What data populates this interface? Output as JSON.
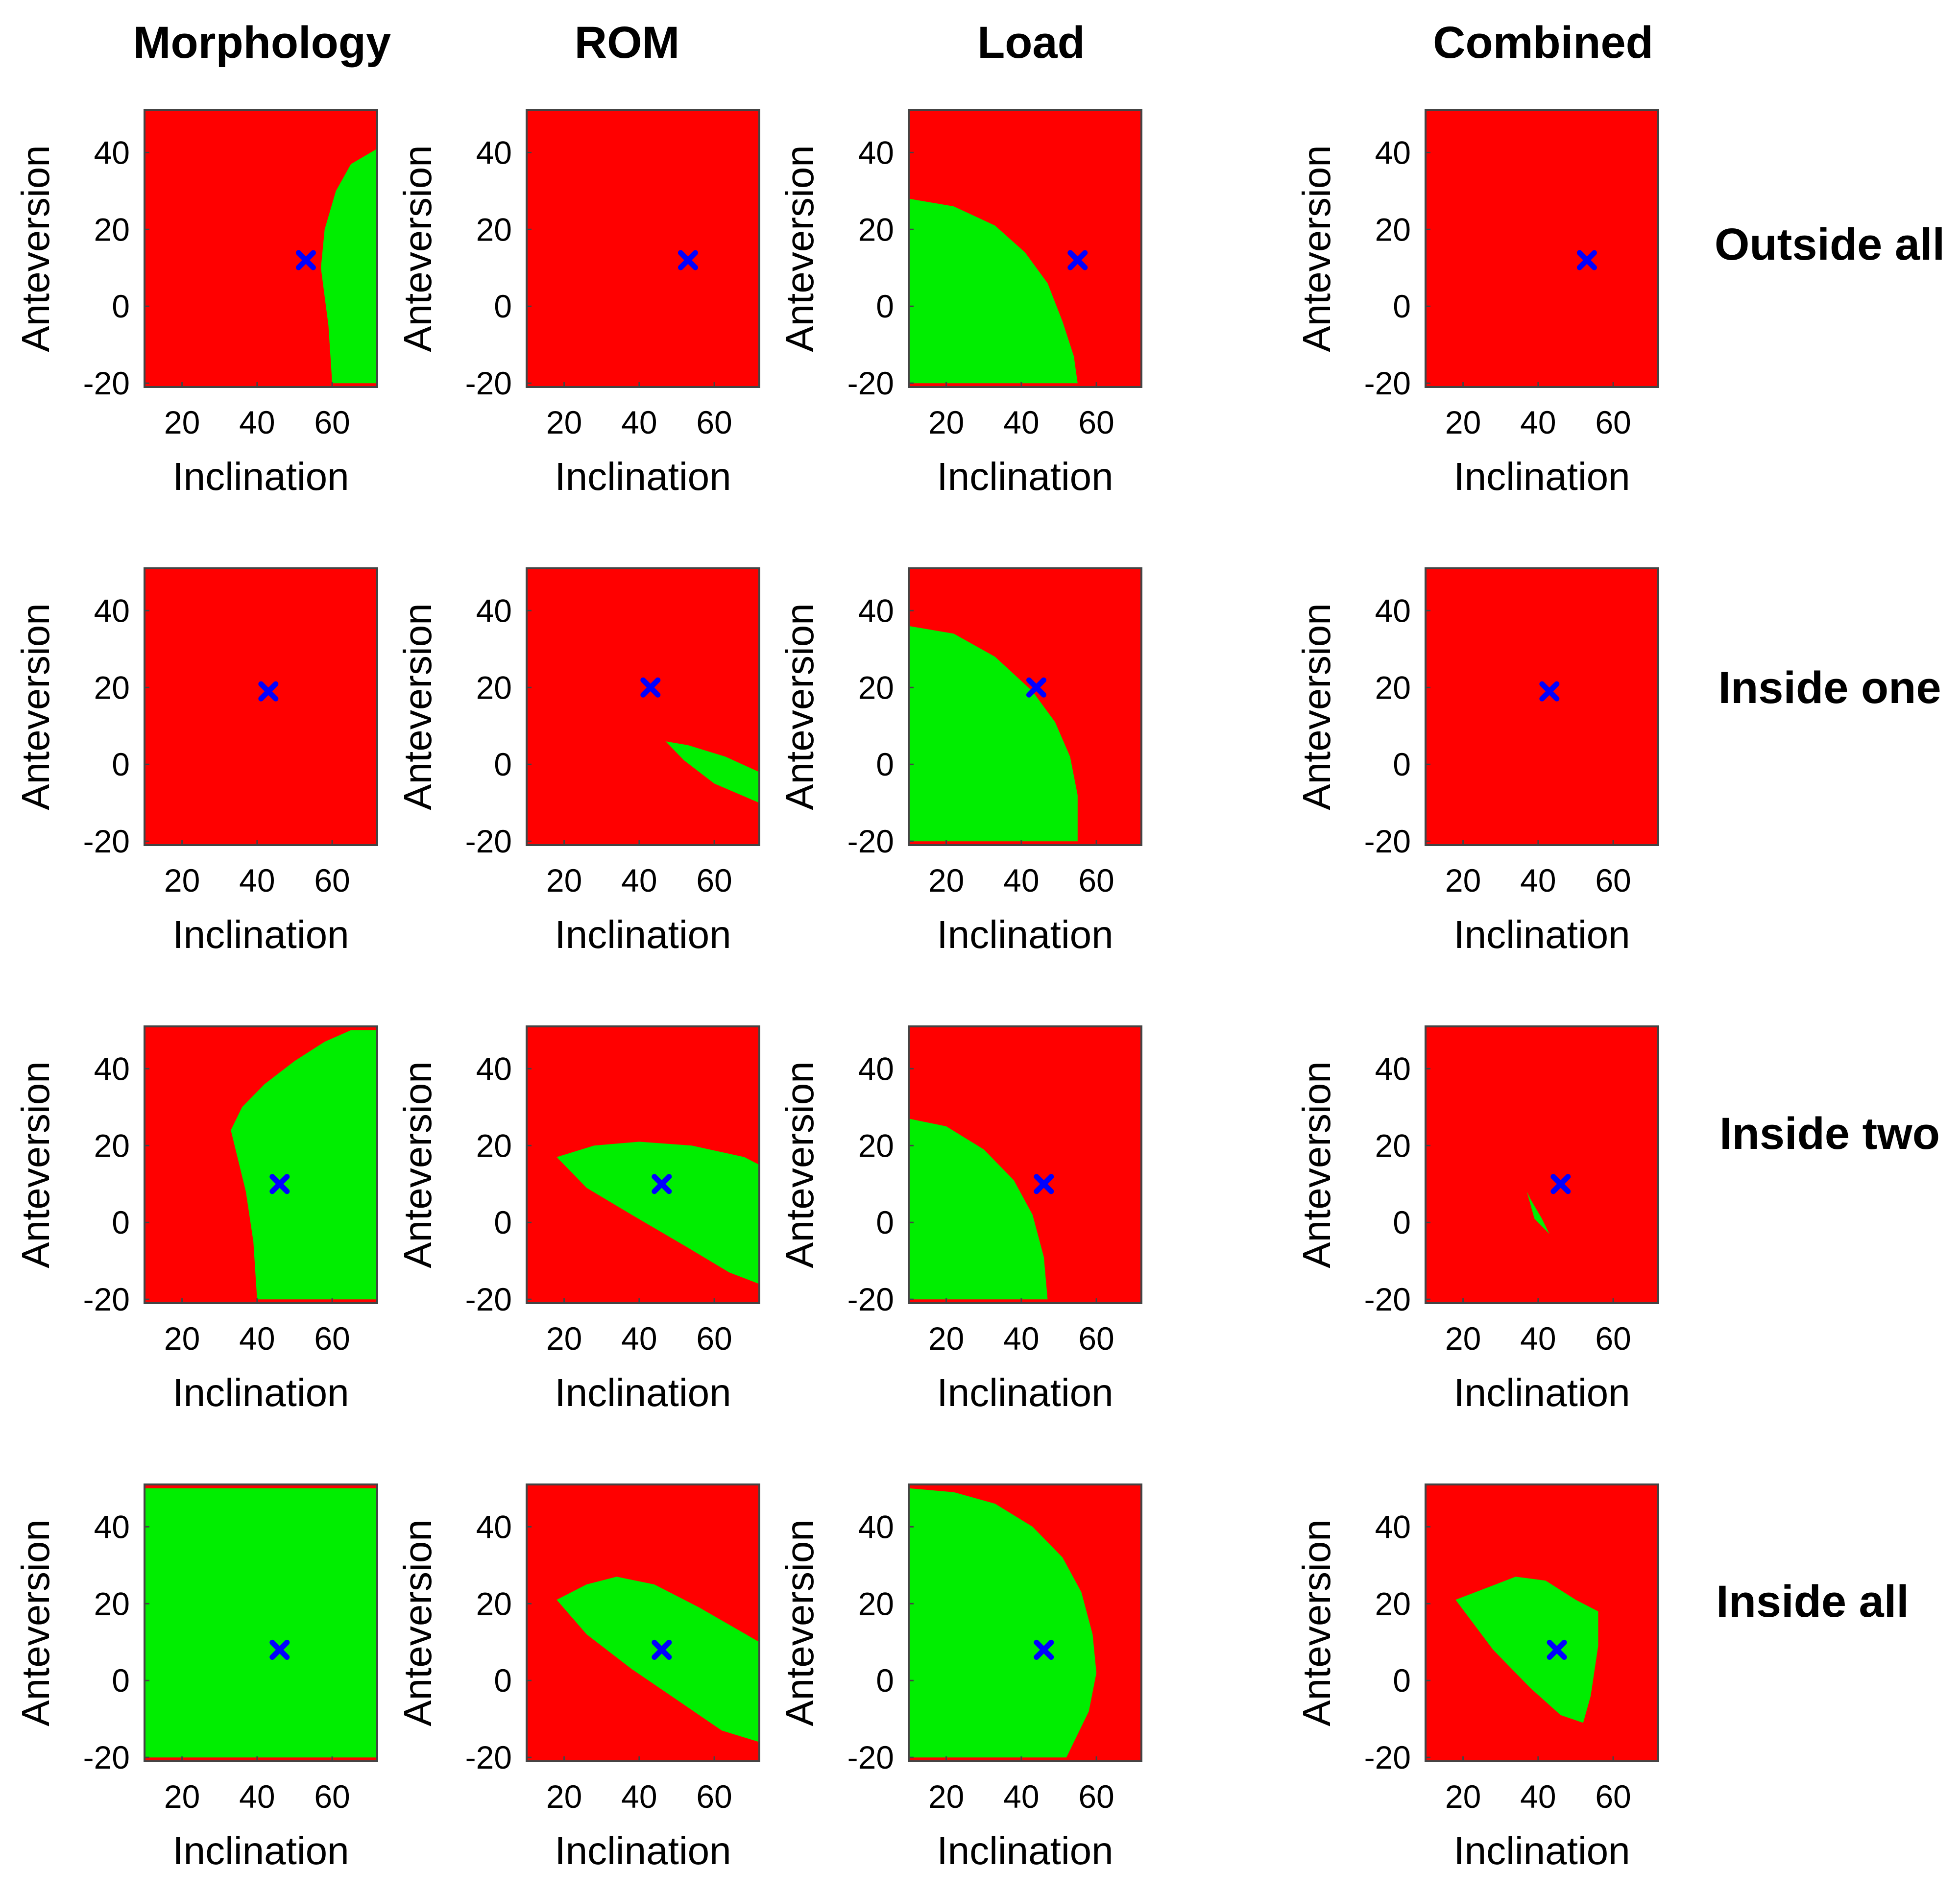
{
  "chart_data": {
    "type": "heatmap",
    "description_free": true,
    "column_titles": [
      "Morphology",
      "ROM",
      "Load",
      "Combined"
    ],
    "row_titles": [
      "Outside all",
      "Inside one",
      "Inside two",
      "Inside all"
    ],
    "colors": {
      "outside": "#ff0000",
      "inside": "#00ee00",
      "marker": "#0000ff",
      "frame": "#444444"
    },
    "axes": {
      "xlabel": "Inclination",
      "ylabel": "Anteversion",
      "xlim": [
        10,
        72
      ],
      "ylim": [
        -21,
        51
      ],
      "xticks": [
        20,
        40,
        60
      ],
      "yticks": [
        40,
        20,
        0,
        -20
      ],
      "xtick_labels": [
        "20",
        "40",
        "60"
      ],
      "ytick_labels": [
        "40",
        "20",
        "0",
        "-20"
      ]
    },
    "panels": [
      {
        "row": 0,
        "col": 0,
        "marker": [
          53,
          12
        ],
        "inside_region": [
          [
            60,
            -20
          ],
          [
            59,
            -5
          ],
          [
            57,
            10
          ],
          [
            58,
            20
          ],
          [
            61,
            30
          ],
          [
            65,
            37
          ],
          [
            72,
            41
          ],
          [
            72,
            -20
          ]
        ]
      },
      {
        "row": 0,
        "col": 1,
        "marker": [
          53,
          12
        ],
        "inside_region": []
      },
      {
        "row": 0,
        "col": 2,
        "marker": [
          55,
          12
        ],
        "inside_region": [
          [
            10,
            -20
          ],
          [
            10,
            28
          ],
          [
            22,
            26
          ],
          [
            33,
            21
          ],
          [
            41,
            14
          ],
          [
            47,
            6
          ],
          [
            51,
            -4
          ],
          [
            54,
            -13
          ],
          [
            55,
            -20
          ]
        ]
      },
      {
        "row": 0,
        "col": 3,
        "marker": [
          53,
          12
        ],
        "inside_region": []
      },
      {
        "row": 1,
        "col": 0,
        "marker": [
          43,
          19
        ],
        "inside_region": []
      },
      {
        "row": 1,
        "col": 1,
        "marker": [
          43,
          20
        ],
        "inside_region": [
          [
            47,
            6
          ],
          [
            53,
            5
          ],
          [
            63,
            2
          ],
          [
            72,
            -2
          ],
          [
            72,
            -10
          ],
          [
            60,
            -5
          ],
          [
            52,
            1
          ]
        ]
      },
      {
        "row": 1,
        "col": 2,
        "marker": [
          44,
          20
        ],
        "inside_region": [
          [
            10,
            -20
          ],
          [
            10,
            36
          ],
          [
            22,
            34
          ],
          [
            33,
            28
          ],
          [
            43,
            19
          ],
          [
            49,
            11
          ],
          [
            53,
            2
          ],
          [
            55,
            -8
          ],
          [
            55,
            -20
          ]
        ]
      },
      {
        "row": 1,
        "col": 3,
        "marker": [
          43,
          19
        ],
        "inside_region": []
      },
      {
        "row": 2,
        "col": 0,
        "marker": [
          46,
          10
        ],
        "inside_region": [
          [
            40,
            -20
          ],
          [
            39,
            -5
          ],
          [
            37,
            8
          ],
          [
            33,
            24
          ],
          [
            36,
            30
          ],
          [
            42,
            36
          ],
          [
            50,
            42
          ],
          [
            58,
            47
          ],
          [
            65,
            50
          ],
          [
            72,
            50
          ],
          [
            72,
            -20
          ]
        ]
      },
      {
        "row": 2,
        "col": 1,
        "marker": [
          46,
          10
        ],
        "inside_region": [
          [
            18,
            17
          ],
          [
            28,
            20
          ],
          [
            40,
            21
          ],
          [
            54,
            20
          ],
          [
            68,
            17
          ],
          [
            72,
            15
          ],
          [
            72,
            -16
          ],
          [
            64,
            -13
          ],
          [
            52,
            -6
          ],
          [
            38,
            2
          ],
          [
            26,
            9
          ]
        ]
      },
      {
        "row": 2,
        "col": 2,
        "marker": [
          46,
          10
        ],
        "inside_region": [
          [
            10,
            -20
          ],
          [
            10,
            27
          ],
          [
            20,
            25
          ],
          [
            30,
            19
          ],
          [
            38,
            11
          ],
          [
            43,
            2
          ],
          [
            46,
            -9
          ],
          [
            47,
            -20
          ]
        ]
      },
      {
        "row": 2,
        "col": 3,
        "marker": [
          46,
          10
        ],
        "inside_region": [
          [
            37,
            8
          ],
          [
            38,
            6
          ],
          [
            41,
            1
          ],
          [
            43,
            -3
          ],
          [
            42,
            -2
          ],
          [
            39,
            1
          ]
        ]
      },
      {
        "row": 3,
        "col": 0,
        "marker": [
          46,
          8
        ],
        "inside_region": [
          [
            10,
            -20
          ],
          [
            10,
            50
          ],
          [
            72,
            50
          ],
          [
            72,
            -20
          ]
        ]
      },
      {
        "row": 3,
        "col": 1,
        "marker": [
          46,
          8
        ],
        "inside_region": [
          [
            18,
            21
          ],
          [
            26,
            25
          ],
          [
            34,
            27
          ],
          [
            44,
            25
          ],
          [
            56,
            19
          ],
          [
            72,
            10
          ],
          [
            72,
            -16
          ],
          [
            62,
            -13
          ],
          [
            50,
            -5
          ],
          [
            38,
            3
          ],
          [
            26,
            12
          ]
        ]
      },
      {
        "row": 3,
        "col": 2,
        "marker": [
          46,
          8
        ],
        "inside_region": [
          [
            10,
            -20
          ],
          [
            10,
            50
          ],
          [
            22,
            49
          ],
          [
            33,
            46
          ],
          [
            43,
            40
          ],
          [
            51,
            32
          ],
          [
            56,
            23
          ],
          [
            59,
            12
          ],
          [
            60,
            2
          ],
          [
            58,
            -8
          ],
          [
            54,
            -16
          ],
          [
            52,
            -20
          ]
        ]
      },
      {
        "row": 3,
        "col": 3,
        "marker": [
          45,
          8
        ],
        "inside_region": [
          [
            18,
            21
          ],
          [
            26,
            24
          ],
          [
            34,
            27
          ],
          [
            42,
            26
          ],
          [
            50,
            21
          ],
          [
            56,
            18
          ],
          [
            56,
            9
          ],
          [
            54,
            -4
          ],
          [
            52,
            -11
          ],
          [
            46,
            -9
          ],
          [
            38,
            -2
          ],
          [
            28,
            8
          ]
        ]
      }
    ]
  }
}
